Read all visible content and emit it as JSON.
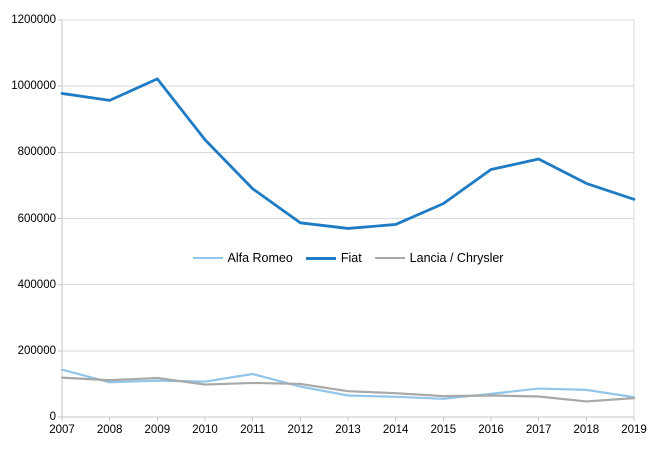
{
  "chart_data": {
    "type": "line",
    "title": "",
    "xlabel": "",
    "ylabel": "",
    "x": [
      2007,
      2008,
      2009,
      2010,
      2011,
      2012,
      2013,
      2014,
      2015,
      2016,
      2017,
      2018,
      2019
    ],
    "series": [
      {
        "name": "Alfa Romeo",
        "color": "#92c5ea",
        "values": [
          143000,
          105000,
          110000,
          107000,
          130000,
          92000,
          65000,
          61000,
          55000,
          70000,
          86000,
          82000,
          60000
        ]
      },
      {
        "name": "Fiat",
        "color": "#1f7cc4",
        "values": [
          978000,
          957000,
          1022000,
          838000,
          690000,
          587000,
          570000,
          582000,
          645000,
          748000,
          780000,
          706000,
          658000
        ]
      },
      {
        "name": "Lancia / Chrysler",
        "color": "#a8a8a8",
        "values": [
          119000,
          111000,
          118000,
          98000,
          103000,
          100000,
          78000,
          72000,
          63000,
          65000,
          62000,
          47000,
          57000
        ]
      }
    ],
    "ylim": [
      0,
      1200000
    ],
    "yticks": [
      "0",
      "200000",
      "400000",
      "600000",
      "800000",
      "1000000",
      "1200000"
    ],
    "ytick_values": [
      0,
      200000,
      400000,
      600000,
      800000,
      1000000,
      1200000
    ],
    "grid": "horizontal",
    "legend_position": "center-overlay",
    "colors": {
      "gridline": "#d9d9d9",
      "axis": "#c6c6c6",
      "text": "#000000",
      "background": "#ffffff"
    }
  }
}
